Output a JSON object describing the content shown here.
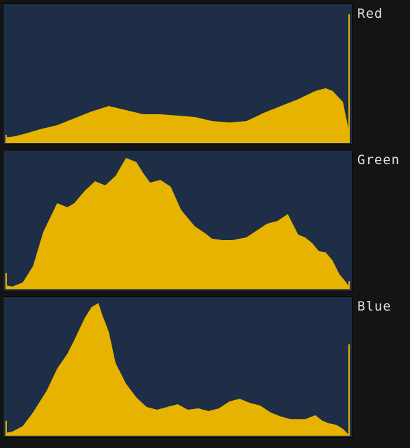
{
  "colors": {
    "background": "#141414",
    "plot_bg": "#1f2e47",
    "fill": "#e6b300"
  },
  "chart_data": [
    {
      "type": "area",
      "series_label": "Red",
      "ylim": [
        0,
        100
      ],
      "x": [
        0,
        3,
        6,
        10,
        15,
        20,
        25,
        30,
        35,
        40,
        45,
        50,
        55,
        60,
        65,
        70,
        75,
        80,
        85,
        90,
        93,
        95,
        98,
        100
      ],
      "values": [
        4,
        5,
        7,
        10,
        13,
        18,
        23,
        27,
        24,
        21,
        21,
        20,
        19,
        16,
        15,
        16,
        22,
        27,
        32,
        38,
        40,
        38,
        30,
        6
      ]
    },
    {
      "type": "area",
      "series_label": "Green",
      "ylim": [
        0,
        100
      ],
      "x": [
        0,
        2,
        5,
        8,
        11,
        15,
        18,
        20,
        23,
        26,
        29,
        32,
        35,
        38,
        40,
        42,
        45,
        48,
        51,
        55,
        58,
        60,
        63,
        66,
        70,
        73,
        76,
        79,
        82,
        84,
        85,
        87,
        89,
        91,
        93,
        95,
        97,
        99,
        100
      ],
      "values": [
        3,
        2,
        5,
        17,
        42,
        63,
        60,
        63,
        72,
        79,
        76,
        83,
        96,
        93,
        85,
        78,
        80,
        75,
        58,
        46,
        41,
        37,
        36,
        36,
        38,
        43,
        48,
        50,
        55,
        45,
        40,
        38,
        34,
        28,
        27,
        21,
        11,
        5,
        1
      ]
    },
    {
      "type": "area",
      "series_label": "Blue",
      "ylim": [
        0,
        100
      ],
      "x": [
        0,
        2,
        5,
        8,
        12,
        15,
        18,
        20,
        23,
        25,
        27,
        28,
        30,
        32,
        35,
        38,
        41,
        44,
        47,
        50,
        53,
        56,
        59,
        62,
        65,
        68,
        71,
        74,
        77,
        80,
        83,
        85,
        87,
        90,
        92,
        94,
        96,
        98,
        100
      ],
      "values": [
        2,
        3,
        7,
        17,
        33,
        49,
        60,
        70,
        86,
        94,
        97,
        89,
        76,
        53,
        38,
        28,
        21,
        19,
        21,
        23,
        19,
        20,
        18,
        20,
        25,
        27,
        24,
        22,
        17,
        14,
        12,
        12,
        12,
        15,
        11,
        9,
        8,
        5,
        0
      ]
    }
  ]
}
